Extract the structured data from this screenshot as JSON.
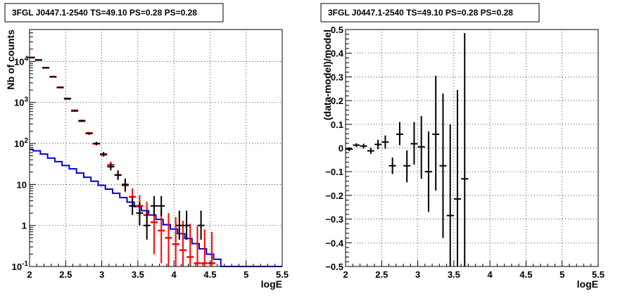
{
  "chart_data": [
    {
      "type": "scatter",
      "title": "3FGL J0447.1-2540 TS=49.10 PS=0.28 PS=0.28",
      "xlabel": "logE",
      "ylabel": "Nb of counts",
      "xlim": [
        2,
        5.5
      ],
      "ylim": [
        0.1,
        60000
      ],
      "yscale": "log",
      "grid": true,
      "x_ticks": [
        "2",
        "2.5",
        "3",
        "3.5",
        "4",
        "4.5",
        "5",
        "5.5"
      ],
      "y_ticks": [
        {
          "value": 0.1,
          "base": "10",
          "exp": "-1"
        },
        {
          "value": 1,
          "base": "1",
          "exp": ""
        },
        {
          "value": 10,
          "base": "10",
          "exp": ""
        },
        {
          "value": 100,
          "base": "10",
          "exp": "2"
        },
        {
          "value": 1000,
          "base": "10",
          "exp": "3"
        },
        {
          "value": 10000,
          "base": "10",
          "exp": "4"
        }
      ],
      "series": [
        {
          "color": "#000000",
          "style": "errorbar",
          "points": [
            {
              "x": 2.025,
              "y": 12500,
              "ylo": 12350,
              "yhi": 12650
            },
            {
              "x": 2.125,
              "y": 10800,
              "ylo": 10650,
              "yhi": 10950
            },
            {
              "x": 2.225,
              "y": 7000,
              "ylo": 6880,
              "yhi": 7120
            },
            {
              "x": 2.325,
              "y": 4200,
              "ylo": 4100,
              "yhi": 4300
            },
            {
              "x": 2.425,
              "y": 2300,
              "ylo": 2230,
              "yhi": 2370
            },
            {
              "x": 2.525,
              "y": 1250,
              "ylo": 1200,
              "yhi": 1300
            },
            {
              "x": 2.625,
              "y": 620,
              "ylo": 590,
              "yhi": 650
            },
            {
              "x": 2.725,
              "y": 360,
              "ylo": 340,
              "yhi": 380
            },
            {
              "x": 2.825,
              "y": 175,
              "ylo": 162,
              "yhi": 188
            },
            {
              "x": 2.925,
              "y": 100,
              "ylo": 90,
              "yhi": 110
            },
            {
              "x": 3.025,
              "y": 55,
              "ylo": 48,
              "yhi": 62
            },
            {
              "x": 3.125,
              "y": 27,
              "ylo": 22,
              "yhi": 33
            },
            {
              "x": 3.225,
              "y": 17,
              "ylo": 13,
              "yhi": 22
            },
            {
              "x": 3.325,
              "y": 10,
              "ylo": 7,
              "yhi": 14
            },
            {
              "x": 3.425,
              "y": 3,
              "ylo": 1.8,
              "yhi": 5
            },
            {
              "x": 3.525,
              "y": 2,
              "ylo": 1.0,
              "yhi": 3.7
            },
            {
              "x": 3.625,
              "y": 1,
              "ylo": 0.45,
              "yhi": 2.3
            },
            {
              "x": 3.725,
              "y": 3,
              "ylo": 1.7,
              "yhi": 5.2
            },
            {
              "x": 3.825,
              "y": 3,
              "ylo": 1.7,
              "yhi": 5.2
            },
            {
              "x": 4.075,
              "y": 1,
              "ylo": 0.45,
              "yhi": 2.3
            },
            {
              "x": 4.175,
              "y": 1,
              "ylo": 0.45,
              "yhi": 2.3
            },
            {
              "x": 4.375,
              "y": 1,
              "ylo": 0.45,
              "yhi": 2.3
            }
          ]
        },
        {
          "color": "#ff0000",
          "style": "errorbar",
          "points": [
            {
              "x": 2.025,
              "y": 12400
            },
            {
              "x": 2.125,
              "y": 10900
            },
            {
              "x": 2.225,
              "y": 7000
            },
            {
              "x": 2.325,
              "y": 4250
            },
            {
              "x": 2.425,
              "y": 2350
            },
            {
              "x": 2.525,
              "y": 1220
            },
            {
              "x": 2.625,
              "y": 640
            },
            {
              "x": 2.725,
              "y": 350
            },
            {
              "x": 2.825,
              "y": 180
            },
            {
              "x": 2.925,
              "y": 98
            },
            {
              "x": 3.025,
              "y": 53
            },
            {
              "x": 3.125,
              "y": 30,
              "ylo": 25,
              "yhi": 36
            },
            {
              "x": 3.225,
              "y": 17,
              "ylo": 13,
              "yhi": 22
            },
            {
              "x": 3.325,
              "y": 9.5,
              "ylo": 6.5,
              "yhi": 13.5
            },
            {
              "x": 3.425,
              "y": 5,
              "ylo": 3,
              "yhi": 8
            },
            {
              "x": 3.525,
              "y": 3,
              "ylo": 1.5,
              "yhi": 5.5
            },
            {
              "x": 3.625,
              "y": 1.8,
              "ylo": 0.8,
              "yhi": 3.8
            },
            {
              "x": 3.725,
              "y": 1.2,
              "ylo": 0.2,
              "yhi": 3.2
            },
            {
              "x": 3.825,
              "y": 0.75,
              "ylo": 0.12,
              "yhi": 2.4
            },
            {
              "x": 3.925,
              "y": 0.5,
              "ylo": 0.1,
              "yhi": 2.0
            },
            {
              "x": 4.025,
              "y": 0.35,
              "ylo": 0.1,
              "yhi": 1.6
            },
            {
              "x": 4.125,
              "y": 0.25,
              "ylo": 0.1,
              "yhi": 1.3
            },
            {
              "x": 4.225,
              "y": 0.17,
              "ylo": 0.1,
              "yhi": 1.1
            },
            {
              "x": 4.325,
              "y": 0.12,
              "ylo": 0.1,
              "yhi": 0.95
            },
            {
              "x": 4.425,
              "y": 0.12,
              "ylo": 0.1,
              "yhi": 0.8
            },
            {
              "x": 4.525,
              "y": 0.12,
              "ylo": 0.1,
              "yhi": 0.7
            }
          ]
        },
        {
          "color": "#0000dd",
          "style": "step",
          "edges": [
            2.0,
            2.05,
            2.15,
            2.25,
            2.35,
            2.45,
            2.55,
            2.65,
            2.75,
            2.85,
            2.95,
            3.05,
            3.15,
            3.25,
            3.35,
            3.45,
            3.55,
            3.65,
            3.75,
            3.85,
            3.95,
            4.05,
            4.15,
            4.25,
            4.35,
            4.45,
            4.55,
            4.65,
            5.5
          ],
          "values": [
            72,
            66,
            55,
            44,
            36,
            29,
            24,
            19,
            15,
            12,
            9.5,
            7.7,
            6.1,
            4.8,
            3.7,
            2.9,
            2.3,
            1.8,
            1.4,
            1.05,
            0.82,
            0.63,
            0.48,
            0.36,
            0.27,
            0.2,
            0.15,
            0.1
          ]
        }
      ]
    },
    {
      "type": "scatter",
      "title": "3FGL J0447.1-2540 TS=49.10 PS=0.28 PS=0.28",
      "xlabel": "logE",
      "ylabel": "(data-model)/model",
      "xlim": [
        2,
        5.5
      ],
      "ylim": [
        -0.5,
        0.5
      ],
      "grid": true,
      "x_ticks": [
        "2",
        "2.5",
        "3",
        "3.5",
        "4",
        "4.5",
        "5",
        "5.5"
      ],
      "y_ticks": [
        "−0.5",
        "−0.4",
        "−0.3",
        "−0.2",
        "−0.1",
        "0",
        "0.1",
        "0.2",
        "0.3",
        "0.4",
        "0.5"
      ],
      "series": [
        {
          "color": "#000000",
          "style": "errorbar",
          "points": [
            {
              "x": 2.05,
              "y": -0.005,
              "ylo": -0.013,
              "yhi": 0.003
            },
            {
              "x": 2.15,
              "y": 0.012,
              "ylo": 0.004,
              "yhi": 0.02
            },
            {
              "x": 2.25,
              "y": 0.008,
              "ylo": -0.002,
              "yhi": 0.018
            },
            {
              "x": 2.35,
              "y": -0.012,
              "ylo": -0.025,
              "yhi": 0.001
            },
            {
              "x": 2.45,
              "y": 0.015,
              "ylo": -0.005,
              "yhi": 0.035
            },
            {
              "x": 2.55,
              "y": 0.025,
              "ylo": -0.003,
              "yhi": 0.053
            },
            {
              "x": 2.65,
              "y": -0.075,
              "ylo": -0.11,
              "yhi": -0.04
            },
            {
              "x": 2.75,
              "y": 0.058,
              "ylo": 0.012,
              "yhi": 0.11
            },
            {
              "x": 2.85,
              "y": -0.075,
              "ylo": -0.145,
              "yhi": -0.01
            },
            {
              "x": 2.95,
              "y": 0.018,
              "ylo": -0.07,
              "yhi": 0.11
            },
            {
              "x": 3.05,
              "y": 0.005,
              "ylo": -0.13,
              "yhi": 0.135
            },
            {
              "x": 3.15,
              "y": -0.1,
              "ylo": -0.27,
              "yhi": 0.07
            },
            {
              "x": 3.25,
              "y": 0.058,
              "ylo": -0.18,
              "yhi": 0.305
            },
            {
              "x": 3.35,
              "y": -0.075,
              "ylo": -0.38,
              "yhi": 0.23
            },
            {
              "x": 3.45,
              "y": -0.285,
              "ylo": -0.5,
              "yhi": 0.1
            },
            {
              "x": 3.55,
              "y": -0.215,
              "ylo": -0.5,
              "yhi": 0.245
            },
            {
              "x": 3.65,
              "y": -0.13,
              "ylo": -0.5,
              "yhi": 0.485
            }
          ]
        }
      ]
    }
  ]
}
